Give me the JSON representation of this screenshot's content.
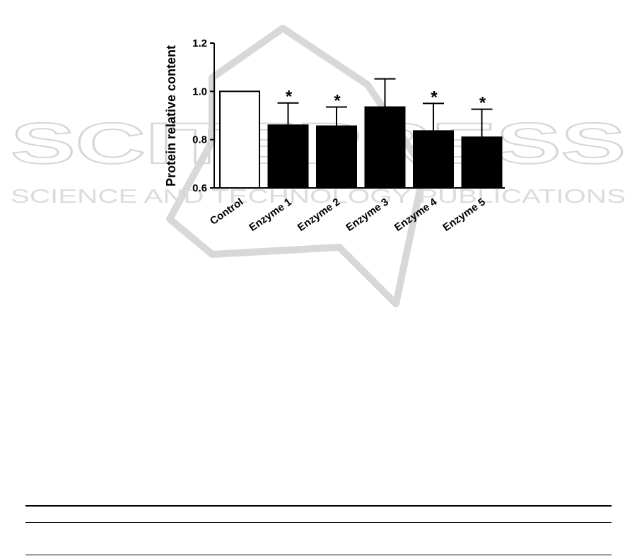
{
  "watermark": {
    "big": "SCITEPRESS",
    "small": "SCIENCE AND TECHNOLOGY PUBLICATIONS"
  },
  "chart_data": {
    "type": "bar",
    "title": "",
    "xlabel": "",
    "ylabel": "Protein relative content",
    "ylim": [
      0.6,
      1.2
    ],
    "yticks": [
      0.6,
      0.8,
      1.0,
      1.2
    ],
    "ytick_labels": [
      "0.6",
      "0.8",
      "1.0",
      "1.2"
    ],
    "categories": [
      "Control",
      "Enzyme 1",
      "Enzyme 2",
      "Enzyme 3",
      "Enzyme 4",
      "Enzyme 5"
    ],
    "values": [
      1.0,
      0.86,
      0.856,
      0.935,
      0.836,
      0.81
    ],
    "error_upper": [
      1.0,
      0.952,
      0.935,
      1.052,
      0.95,
      0.926
    ],
    "significance": [
      "",
      "*",
      "*",
      "",
      "*",
      "*"
    ],
    "bar_fill": [
      "#ffffff",
      "#000000",
      "#000000",
      "#000000",
      "#000000",
      "#000000"
    ],
    "grid": false,
    "legend": "none"
  }
}
